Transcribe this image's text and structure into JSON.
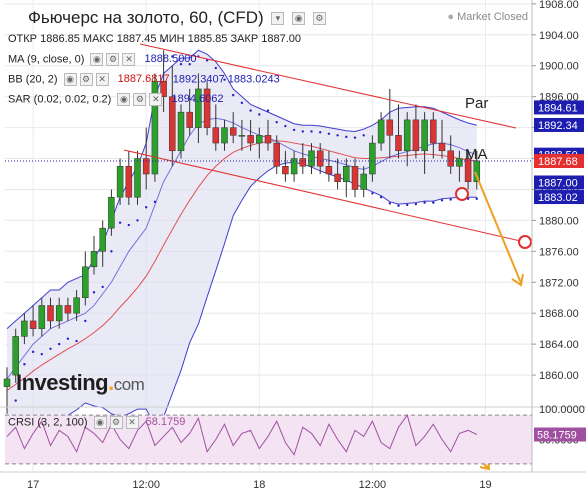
{
  "title": "Фьючерс на золото, 60, (CFD)",
  "market_status": "Market Closed",
  "ohlc": {
    "open_label": "ОТКР",
    "open": "1886.85",
    "high_label": "МАКС",
    "high": "1887.45",
    "low_label": "МИН",
    "low": "1885.85",
    "close_label": "ЗАКР",
    "close": "1887.00"
  },
  "indicators": {
    "ma": {
      "label": "MA (9, close, 0)",
      "value": "1888.5000"
    },
    "bb": {
      "label": "BB (20, 2)",
      "mid": "1887.6817",
      "upper": "1892.3407",
      "lower": "1883.0243"
    },
    "sar": {
      "label": "SAR (0.02, 0.02, 0.2)",
      "value": "1894.6062"
    }
  },
  "logo": {
    "main": "Investing",
    "suffix": "com"
  },
  "annotations": {
    "par": "Par",
    "ma": "MA"
  },
  "crsi": {
    "label": "CRSI (3, 2, 100)",
    "value": "58.1759"
  },
  "price_tags": {
    "sar": "1894.61",
    "bb_upper": "1892.34",
    "ma": "1888.50",
    "last": "1887.68",
    "close": "1887.00",
    "bb_lower": "1883.02"
  },
  "colors": {
    "up": "#2ba02b",
    "down": "#d93535",
    "bb_band": "#3f3fcf",
    "bb_fill": "#dcdcf2",
    "bb_mid": "#e05050",
    "sar": "#2222cc",
    "channel": "#e03030",
    "arrow": "#f0a020",
    "tag_blue": "#1d1db0",
    "tag_red": "#e53030",
    "crsi_line": "#a050a0",
    "crsi_fill": "#f3e3f3"
  },
  "chart_data": [
    {
      "type": "candlestick",
      "title": "Фьючерс на золото, 60, (CFD)",
      "y_ticks": [
        1860,
        1864,
        1868,
        1872,
        1876,
        1880,
        1884,
        1888,
        1892,
        1896,
        1900,
        1904,
        1908
      ],
      "ylim": [
        1856,
        1908.5
      ],
      "x_tick_labels": [
        {
          "bar": 3,
          "label": "17"
        },
        {
          "bar": 16,
          "label": "12:00"
        },
        {
          "bar": 29,
          "label": "18"
        },
        {
          "bar": 42,
          "label": "12:00"
        },
        {
          "bar": 55,
          "label": "19"
        }
      ],
      "candles": [
        [
          1858.5,
          1861,
          1855,
          1859.5
        ],
        [
          1860,
          1866,
          1859,
          1865
        ],
        [
          1865,
          1868,
          1864,
          1867
        ],
        [
          1867,
          1869,
          1865,
          1866
        ],
        [
          1866,
          1870,
          1865,
          1869
        ],
        [
          1869,
          1870,
          1866,
          1867
        ],
        [
          1867,
          1870,
          1866,
          1869
        ],
        [
          1869,
          1870,
          1867,
          1868
        ],
        [
          1868,
          1871,
          1867,
          1870
        ],
        [
          1870,
          1876,
          1869,
          1874
        ],
        [
          1874,
          1878,
          1873,
          1876
        ],
        [
          1876,
          1880,
          1874,
          1879
        ],
        [
          1879,
          1884,
          1878,
          1883
        ],
        [
          1883,
          1888,
          1882,
          1887
        ],
        [
          1887,
          1889,
          1882,
          1883
        ],
        [
          1883,
          1889,
          1882,
          1888
        ],
        [
          1888,
          1892,
          1884,
          1886
        ],
        [
          1886,
          1899,
          1885,
          1898
        ],
        [
          1898,
          1902,
          1894,
          1896
        ],
        [
          1896,
          1900,
          1887,
          1889
        ],
        [
          1889,
          1895,
          1888,
          1894
        ],
        [
          1894,
          1897,
          1891,
          1892
        ],
        [
          1892,
          1899,
          1890,
          1897
        ],
        [
          1897,
          1898,
          1891,
          1892
        ],
        [
          1892,
          1895,
          1889,
          1890
        ],
        [
          1890,
          1893,
          1889,
          1892
        ],
        [
          1892,
          1894,
          1890,
          1891
        ],
        [
          1891,
          1893,
          1889,
          1891
        ],
        [
          1891,
          1893,
          1889,
          1890
        ],
        [
          1890,
          1892,
          1888,
          1891
        ],
        [
          1891,
          1893,
          1889,
          1890
        ],
        [
          1890,
          1891,
          1886,
          1887
        ],
        [
          1887,
          1889,
          1885,
          1886
        ],
        [
          1886,
          1889,
          1885,
          1888
        ],
        [
          1888,
          1890,
          1886,
          1887
        ],
        [
          1887,
          1890,
          1886,
          1889
        ],
        [
          1889,
          1890,
          1886,
          1887
        ],
        [
          1887,
          1889,
          1885,
          1886
        ],
        [
          1886,
          1888,
          1884,
          1885
        ],
        [
          1885,
          1888,
          1883,
          1887
        ],
        [
          1887,
          1888,
          1883,
          1884
        ],
        [
          1884,
          1887,
          1883,
          1886
        ],
        [
          1886,
          1891,
          1885,
          1890
        ],
        [
          1890,
          1894,
          1889,
          1893
        ],
        [
          1893,
          1897,
          1888,
          1891
        ],
        [
          1891,
          1895,
          1888,
          1889
        ],
        [
          1889,
          1894,
          1887,
          1893
        ],
        [
          1893,
          1895,
          1888,
          1889
        ],
        [
          1889,
          1894,
          1886,
          1893
        ],
        [
          1893,
          1894,
          1888,
          1890
        ],
        [
          1890,
          1893,
          1888,
          1889
        ],
        [
          1889,
          1891,
          1886,
          1887
        ],
        [
          1887,
          1889,
          1885,
          1888
        ],
        [
          1888,
          1889,
          1884,
          1885
        ],
        [
          1885,
          1889,
          1884,
          1887.7
        ]
      ],
      "ma9": [
        1859.5,
        1861,
        1862.5,
        1864,
        1865,
        1866,
        1866.5,
        1867,
        1867.5,
        1868,
        1869,
        1870.5,
        1872,
        1874,
        1876,
        1877.5,
        1879,
        1882,
        1885,
        1887,
        1889,
        1891,
        1892.5,
        1893,
        1893.2,
        1893,
        1892.6,
        1892,
        1891.5,
        1891,
        1890.7,
        1890.2,
        1889.6,
        1889,
        1888.6,
        1888.3,
        1888,
        1887.8,
        1887.5,
        1887.2,
        1886.8,
        1886.6,
        1887,
        1887.6,
        1888.2,
        1888.6,
        1888.9,
        1889.2,
        1889.6,
        1889.9,
        1890,
        1889.8,
        1889.4,
        1888.9,
        1888.5
      ],
      "bb_upper": [
        1866,
        1867,
        1868,
        1869,
        1870,
        1871,
        1871,
        1872,
        1872.5,
        1873,
        1875,
        1877,
        1880,
        1883,
        1885,
        1887,
        1890,
        1896,
        1899,
        1900,
        1901,
        1901,
        1902,
        1901.5,
        1900.5,
        1899,
        1897,
        1896,
        1895,
        1894.5,
        1894,
        1893.5,
        1893,
        1892.5,
        1892.3,
        1892.3,
        1892.2,
        1892,
        1891.8,
        1891.6,
        1891.5,
        1891.8,
        1892.3,
        1893,
        1894,
        1894.5,
        1894.6,
        1894.7,
        1894.7,
        1894.5,
        1894,
        1893.5,
        1893,
        1892.6,
        1892.3
      ],
      "bb_mid": [
        1858,
        1858.8,
        1859.6,
        1860.5,
        1861.3,
        1862,
        1862.7,
        1863.4,
        1864,
        1864.7,
        1865.5,
        1866.4,
        1867.5,
        1868.8,
        1870,
        1871.3,
        1872.8,
        1874.7,
        1876.8,
        1878.8,
        1880.8,
        1882.6,
        1884.3,
        1885.8,
        1887,
        1888,
        1888.8,
        1889.3,
        1889.7,
        1890,
        1890.2,
        1890.3,
        1890.2,
        1890,
        1889.8,
        1889.6,
        1889.3,
        1889,
        1888.7,
        1888.4,
        1888.1,
        1888,
        1888,
        1888.1,
        1888.2,
        1888.3,
        1888.4,
        1888.5,
        1888.6,
        1888.5,
        1888.4,
        1888.2,
        1888,
        1887.8,
        1887.7
      ],
      "bb_lower": [
        1850,
        1850.6,
        1851.2,
        1852,
        1852.6,
        1853,
        1854.4,
        1854.8,
        1855.5,
        1856.4,
        1856,
        1855.8,
        1855,
        1854.6,
        1855,
        1855.6,
        1855.6,
        1853.4,
        1854.6,
        1857.6,
        1860.6,
        1864.2,
        1866.6,
        1870.1,
        1873.5,
        1877,
        1880.6,
        1882.6,
        1884.4,
        1885.5,
        1886.4,
        1887.1,
        1887.4,
        1887.5,
        1887.3,
        1886.9,
        1886.4,
        1886,
        1885.6,
        1885.2,
        1884.7,
        1884.2,
        1883.7,
        1883.2,
        1882.4,
        1882.1,
        1882.2,
        1882.3,
        1882.5,
        1882.5,
        1882.8,
        1882.9,
        1883,
        1883,
        1883
      ]
    },
    {
      "type": "line",
      "title": "CRSI (3, 2, 100)",
      "y_ticks": [
        100,
        50
      ],
      "ylim": [
        0,
        100
      ],
      "thresholds": [
        90,
        10
      ],
      "values": [
        55,
        70,
        35,
        60,
        80,
        40,
        65,
        55,
        30,
        70,
        60,
        45,
        75,
        50,
        35,
        65,
        80,
        40,
        55,
        70,
        45,
        60,
        85,
        30,
        50,
        75,
        40,
        60,
        65,
        35,
        55,
        80,
        45,
        25,
        70,
        60,
        40,
        75,
        50,
        30,
        65,
        55,
        80,
        45,
        35,
        70,
        90,
        40,
        55,
        75,
        50,
        30,
        60,
        65,
        58.2
      ]
    }
  ]
}
